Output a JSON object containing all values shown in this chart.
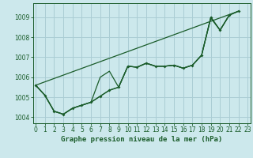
{
  "title": "Graphe pression niveau de la mer (hPa)",
  "background_color": "#cce8ec",
  "grid_color": "#aacdd4",
  "line_color": "#1a5c2a",
  "ylim": [
    1003.7,
    1009.7
  ],
  "xlim": [
    -0.3,
    23.3
  ],
  "yticks": [
    1004,
    1005,
    1006,
    1007,
    1008,
    1009
  ],
  "xticks": [
    0,
    1,
    2,
    3,
    4,
    5,
    6,
    7,
    8,
    9,
    10,
    11,
    12,
    13,
    14,
    15,
    16,
    17,
    18,
    19,
    20,
    21,
    22,
    23
  ],
  "curves": [
    {
      "x": [
        0,
        1,
        2,
        3,
        4,
        5,
        6,
        7,
        8,
        9,
        10,
        11,
        12,
        13,
        14,
        15,
        16,
        17,
        18,
        19,
        20,
        21,
        22
      ],
      "y": [
        1005.6,
        1005.1,
        1004.3,
        1004.15,
        1004.45,
        1004.6,
        1004.75,
        1005.05,
        1005.35,
        1005.5,
        1006.55,
        1006.5,
        1006.7,
        1006.55,
        1006.55,
        1006.6,
        1006.45,
        1006.6,
        1007.1,
        1009.0,
        1008.35,
        1009.1,
        1009.3
      ],
      "marker": true,
      "lw": 0.9
    },
    {
      "x": [
        0,
        1,
        2,
        3,
        4,
        5,
        6,
        7,
        8,
        9,
        10,
        11,
        12,
        13,
        14,
        15,
        16,
        17,
        18,
        19,
        20,
        21
      ],
      "y": [
        1005.6,
        1005.1,
        1004.3,
        1004.15,
        1004.45,
        1004.6,
        1004.75,
        1006.0,
        1006.3,
        1005.5,
        1006.55,
        1006.5,
        1006.7,
        1006.55,
        1006.55,
        1006.6,
        1006.45,
        1006.6,
        1007.1,
        1009.0,
        1008.35,
        1009.1
      ],
      "marker": false,
      "lw": 0.9
    },
    {
      "x": [
        0,
        1,
        2,
        3,
        4,
        5,
        6,
        7,
        8,
        9,
        10,
        11,
        12,
        13,
        14,
        15,
        16,
        17,
        18,
        19,
        20,
        21,
        22
      ],
      "y": [
        1005.6,
        1005.1,
        1004.3,
        1004.15,
        1004.45,
        1004.6,
        1004.75,
        1005.05,
        1005.35,
        1005.5,
        1006.55,
        1006.5,
        1006.7,
        1006.55,
        1006.55,
        1006.6,
        1006.45,
        1006.6,
        1007.1,
        1008.95,
        1008.35,
        1009.1,
        1009.3
      ],
      "marker": false,
      "lw": 0.9
    },
    {
      "x": [
        0,
        22
      ],
      "y": [
        1005.6,
        1009.3
      ],
      "marker": false,
      "lw": 0.9
    }
  ],
  "tick_fontsize": 5.5,
  "xlabel_fontsize": 6.5
}
